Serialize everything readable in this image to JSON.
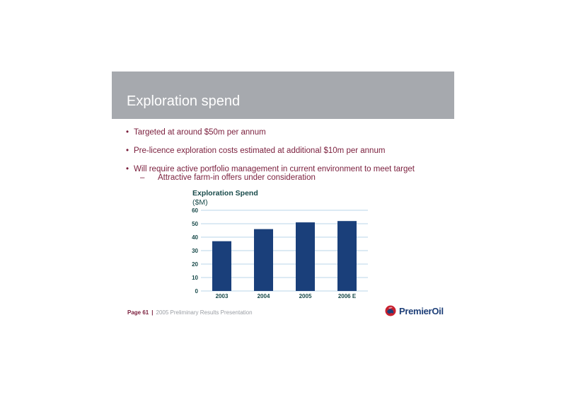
{
  "slide": {
    "title": "Exploration spend",
    "bullets": [
      "Targeted at around $50m per annum",
      "Pre-licence exploration costs estimated at additional $10m per annum",
      "Will require active portfolio management in current environment to meet target"
    ],
    "sub_bullets": [
      "Attractive farm-in offers under consideration"
    ]
  },
  "chart_data": {
    "type": "bar",
    "title": "Exploration Spend",
    "subtitle": "($M)",
    "categories": [
      "2003",
      "2004",
      "2005",
      "2006 E"
    ],
    "values": [
      37,
      46,
      51,
      52
    ],
    "ylim": [
      0,
      60
    ],
    "yticks": [
      0,
      10,
      20,
      30,
      40,
      50,
      60
    ],
    "grid": true,
    "bar_color": "#1a3f7a",
    "grid_color": "#b8d4ea"
  },
  "footer": {
    "page": "Page 61",
    "separator": "|",
    "text": "2005 Preliminary Results Presentation"
  },
  "logo": {
    "text": "PremierOil",
    "icon": "premier-oil-globe-icon"
  }
}
